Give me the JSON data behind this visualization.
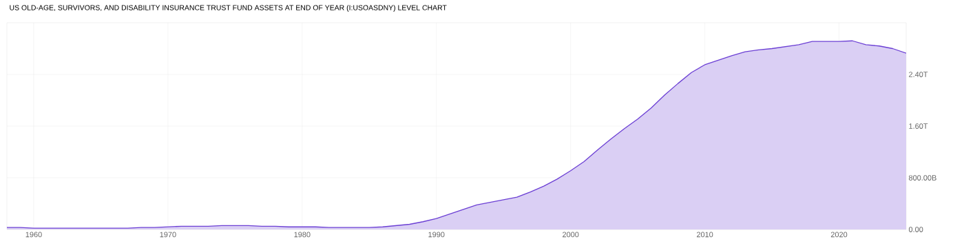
{
  "chart_data": {
    "type": "area",
    "title": "US OLD-AGE, SURVIVORS, AND DISABILITY INSURANCE TRUST FUND ASSETS AT END OF YEAR (I:USOASDNY) LEVEL CHART",
    "x": [
      1958,
      1959,
      1960,
      1961,
      1962,
      1963,
      1964,
      1965,
      1966,
      1967,
      1968,
      1969,
      1970,
      1971,
      1972,
      1973,
      1974,
      1975,
      1976,
      1977,
      1978,
      1979,
      1980,
      1981,
      1982,
      1983,
      1984,
      1985,
      1986,
      1987,
      1988,
      1989,
      1990,
      1991,
      1992,
      1993,
      1994,
      1995,
      1996,
      1997,
      1998,
      1999,
      2000,
      2001,
      2002,
      2003,
      2004,
      2005,
      2006,
      2007,
      2008,
      2009,
      2010,
      2011,
      2012,
      2013,
      2014,
      2015,
      2016,
      2017,
      2018,
      2019,
      2020,
      2021,
      2022,
      2023,
      2024,
      2025
    ],
    "values": [
      30000000000.0,
      30000000000.0,
      20000000000.0,
      20000000000.0,
      20000000000.0,
      20000000000.0,
      20000000000.0,
      20000000000.0,
      20000000000.0,
      20000000000.0,
      30000000000.0,
      30000000000.0,
      40000000000.0,
      50000000000.0,
      50000000000.0,
      50000000000.0,
      60000000000.0,
      60000000000.0,
      60000000000.0,
      50000000000.0,
      50000000000.0,
      40000000000.0,
      40000000000.0,
      40000000000.0,
      30000000000.0,
      30000000000.0,
      30000000000.0,
      30000000000.0,
      40000000000.0,
      60000000000.0,
      80000000000.0,
      120000000000.0,
      170000000000.0,
      240000000000.0,
      310000000000.0,
      380000000000.0,
      420000000000.0,
      460000000000.0,
      500000000000.0,
      580000000000.0,
      670000000000.0,
      780000000000.0,
      910000000000.0,
      1050000000000.0,
      1230000000000.0,
      1400000000000.0,
      1560000000000.0,
      1710000000000.0,
      1880000000000.0,
      2080000000000.0,
      2260000000000.0,
      2430000000000.0,
      2550000000000.0,
      2620000000000.0,
      2690000000000.0,
      2750000000000.0,
      2780000000000.0,
      2800000000000.0,
      2830000000000.0,
      2860000000000.0,
      2910000000000.0,
      2910000000000.0,
      2910000000000.0,
      2920000000000.0,
      2860000000000.0,
      2840000000000.0,
      2800000000000.0,
      2730000000000.0
    ],
    "color": "#6b3fd4",
    "xlim": [
      1958,
      2025
    ],
    "ylim": [
      0,
      3200000000000.0
    ],
    "xticks": [
      1960,
      1970,
      1980,
      1990,
      2000,
      2010,
      2020
    ],
    "yticks": [
      {
        "value": 0,
        "label": "0.00"
      },
      {
        "value": 800000000000.0,
        "label": "800.00B"
      },
      {
        "value": 1600000000000.0,
        "label": "1.60T"
      },
      {
        "value": 2400000000000.0,
        "label": "2.40T"
      }
    ],
    "grid": true
  }
}
